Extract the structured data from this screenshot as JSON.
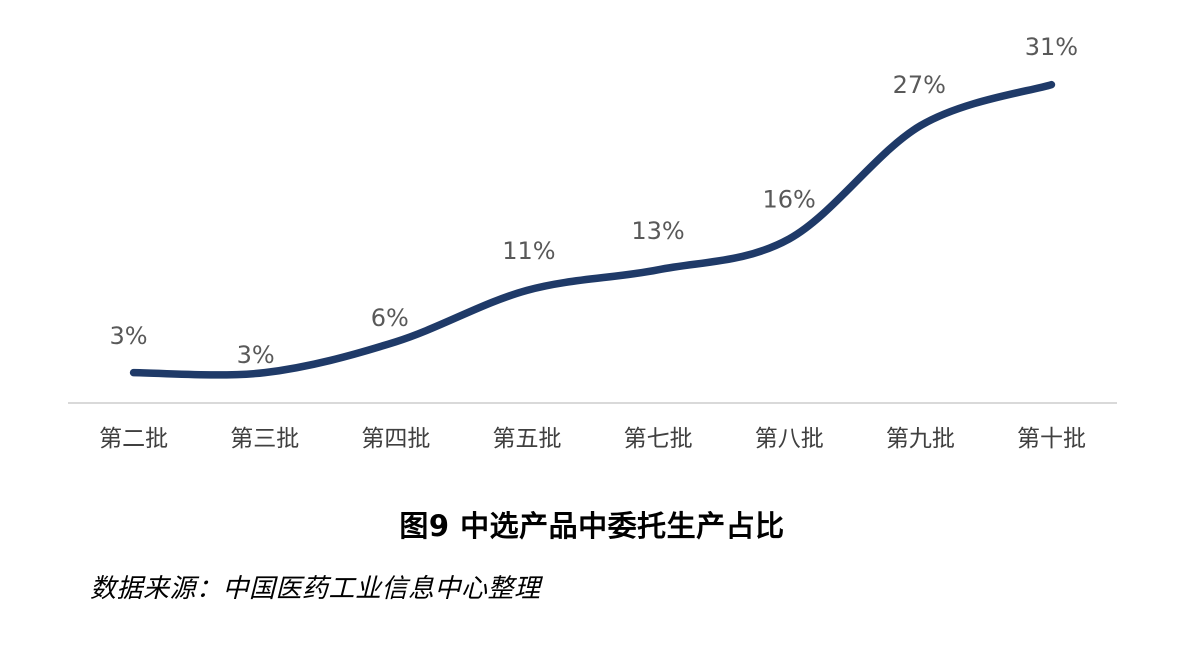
{
  "chart_data": {
    "type": "line",
    "title": "图9 中选产品中委托生产占比",
    "categories": [
      "第二批",
      "第三批",
      "第四批",
      "第五批",
      "第七批",
      "第八批",
      "第九批",
      "第十批"
    ],
    "values": [
      3,
      3,
      6,
      11,
      13,
      16,
      27,
      31
    ],
    "data_labels": [
      "3%",
      "3%",
      "6%",
      "11%",
      "13%",
      "16%",
      "27%",
      "31%"
    ],
    "xlabel": "",
    "ylabel": "",
    "ylim": [
      0,
      35
    ],
    "grid": false,
    "legend": "none",
    "smooth_line": true,
    "line_color": "#1f3a68",
    "data_label_color": "#595959",
    "category_label_color": "#404040",
    "axis_line_color": "#d9d9d9"
  },
  "source_note": {
    "text": "数据来源：中国医药工业信息中心整理"
  }
}
